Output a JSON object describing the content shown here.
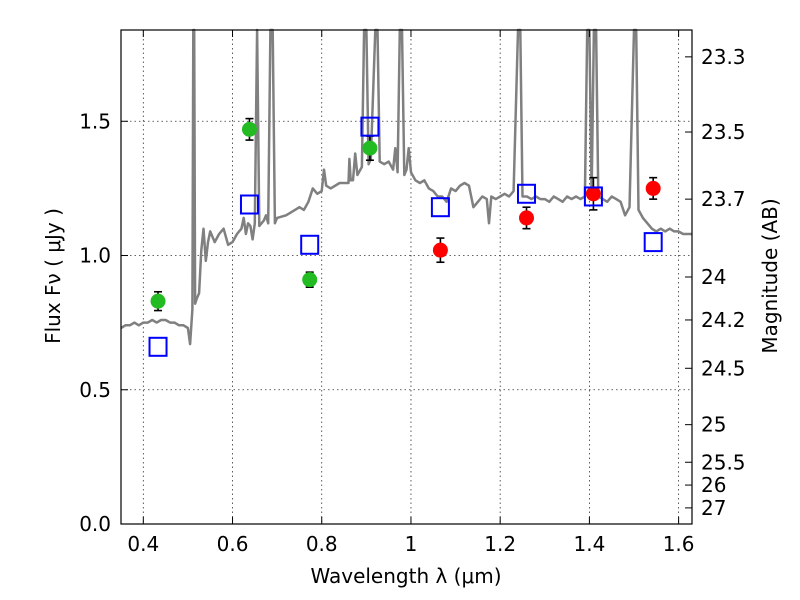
{
  "chart_data": {
    "type": "scatter",
    "xlabel": "Wavelength  λ (μm)",
    "ylabel": "Flux  Fν  ( μJy )",
    "ylabel_right": "Magnitude (AB)",
    "xlim": [
      0.35,
      1.63
    ],
    "ylim": [
      0.0,
      1.84
    ],
    "x_ticks": [
      0.4,
      0.6,
      0.8,
      1.0,
      1.2,
      1.4,
      1.6
    ],
    "x_tick_labels": [
      "0.4",
      "0.6",
      "0.8",
      "1",
      "1.2",
      "1.4",
      "1.6"
    ],
    "y_ticks": [
      0.0,
      0.5,
      1.0,
      1.5
    ],
    "y_tick_labels": [
      "0.0",
      "0.5",
      "1.0",
      "1.5"
    ],
    "right_ticks": [
      {
        "label": "23.3",
        "flux": 1.74
      },
      {
        "label": "23.5",
        "flux": 1.46
      },
      {
        "label": "23.7",
        "flux": 1.21
      },
      {
        "label": "24",
        "flux": 0.92
      },
      {
        "label": "24.2",
        "flux": 0.76
      },
      {
        "label": "24.5",
        "flux": 0.58
      },
      {
        "label": "25",
        "flux": 0.37
      },
      {
        "label": "25.5",
        "flux": 0.23
      },
      {
        "label": "26",
        "flux": 0.145
      },
      {
        "label": "27",
        "flux": 0.06
      }
    ],
    "grid": true,
    "series": [
      {
        "kind": "spectrum",
        "color": "#808080",
        "points": [
          [
            0.35,
            0.73
          ],
          [
            0.36,
            0.74
          ],
          [
            0.37,
            0.74
          ],
          [
            0.38,
            0.75
          ],
          [
            0.39,
            0.74
          ],
          [
            0.4,
            0.75
          ],
          [
            0.41,
            0.75
          ],
          [
            0.42,
            0.76
          ],
          [
            0.43,
            0.75
          ],
          [
            0.44,
            0.76
          ],
          [
            0.45,
            0.76
          ],
          [
            0.46,
            0.75
          ],
          [
            0.47,
            0.75
          ],
          [
            0.48,
            0.74
          ],
          [
            0.49,
            0.74
          ],
          [
            0.5,
            0.73
          ],
          [
            0.505,
            0.67
          ],
          [
            0.51,
            0.8
          ],
          [
            0.512,
            1.84
          ],
          [
            0.514,
            1.84
          ],
          [
            0.516,
            0.82
          ],
          [
            0.52,
            0.84
          ],
          [
            0.525,
            0.86
          ],
          [
            0.53,
            1.02
          ],
          [
            0.535,
            1.1
          ],
          [
            0.54,
            0.98
          ],
          [
            0.545,
            1.05
          ],
          [
            0.55,
            1.09
          ],
          [
            0.56,
            1.05
          ],
          [
            0.57,
            1.08
          ],
          [
            0.58,
            1.1
          ],
          [
            0.59,
            1.04
          ],
          [
            0.6,
            1.05
          ],
          [
            0.61,
            1.08
          ],
          [
            0.62,
            1.1
          ],
          [
            0.625,
            1.14
          ],
          [
            0.63,
            1.08
          ],
          [
            0.635,
            1.12
          ],
          [
            0.64,
            1.11
          ],
          [
            0.645,
            1.06
          ],
          [
            0.65,
            1.12
          ],
          [
            0.655,
            1.84
          ],
          [
            0.66,
            1.11
          ],
          [
            0.665,
            1.12
          ],
          [
            0.67,
            1.13
          ],
          [
            0.675,
            1.15
          ],
          [
            0.68,
            1.12
          ],
          [
            0.685,
            1.84
          ],
          [
            0.69,
            1.84
          ],
          [
            0.695,
            1.12
          ],
          [
            0.7,
            1.14
          ],
          [
            0.72,
            1.15
          ],
          [
            0.74,
            1.17
          ],
          [
            0.75,
            1.18
          ],
          [
            0.76,
            1.17
          ],
          [
            0.77,
            1.2
          ],
          [
            0.78,
            1.25
          ],
          [
            0.79,
            1.23
          ],
          [
            0.8,
            1.24
          ],
          [
            0.805,
            1.32
          ],
          [
            0.81,
            1.26
          ],
          [
            0.82,
            1.25
          ],
          [
            0.84,
            1.27
          ],
          [
            0.86,
            1.27
          ],
          [
            0.862,
            1.36
          ],
          [
            0.865,
            1.28
          ],
          [
            0.87,
            1.28
          ],
          [
            0.875,
            1.38
          ],
          [
            0.88,
            1.3
          ],
          [
            0.89,
            1.33
          ],
          [
            0.895,
            1.84
          ],
          [
            0.9,
            1.84
          ],
          [
            0.905,
            1.34
          ],
          [
            0.91,
            1.36
          ],
          [
            0.92,
            1.84
          ],
          [
            0.925,
            1.84
          ],
          [
            0.93,
            1.35
          ],
          [
            0.94,
            1.34
          ],
          [
            0.95,
            1.35
          ],
          [
            0.96,
            1.32
          ],
          [
            0.965,
            1.4
          ],
          [
            0.97,
            1.31
          ],
          [
            0.975,
            1.84
          ],
          [
            0.98,
            1.84
          ],
          [
            0.985,
            1.3
          ],
          [
            0.99,
            1.32
          ],
          [
            0.995,
            1.4
          ],
          [
            1.0,
            1.31
          ],
          [
            1.01,
            1.28
          ],
          [
            1.02,
            1.27
          ],
          [
            1.03,
            1.28
          ],
          [
            1.04,
            1.25
          ],
          [
            1.05,
            1.24
          ],
          [
            1.06,
            1.22
          ],
          [
            1.07,
            1.22
          ],
          [
            1.08,
            1.2
          ],
          [
            1.09,
            1.25
          ],
          [
            1.1,
            1.24
          ],
          [
            1.11,
            1.26
          ],
          [
            1.12,
            1.27
          ],
          [
            1.13,
            1.26
          ],
          [
            1.14,
            1.18
          ],
          [
            1.15,
            1.2
          ],
          [
            1.16,
            1.22
          ],
          [
            1.17,
            1.21
          ],
          [
            1.175,
            1.12
          ],
          [
            1.18,
            1.22
          ],
          [
            1.19,
            1.21
          ],
          [
            1.2,
            1.22
          ],
          [
            1.21,
            1.23
          ],
          [
            1.22,
            1.22
          ],
          [
            1.23,
            1.24
          ],
          [
            1.24,
            1.84
          ],
          [
            1.245,
            1.84
          ],
          [
            1.25,
            1.22
          ],
          [
            1.26,
            1.22
          ],
          [
            1.27,
            1.21
          ],
          [
            1.28,
            1.22
          ],
          [
            1.29,
            1.21
          ],
          [
            1.3,
            1.21
          ],
          [
            1.31,
            1.2
          ],
          [
            1.32,
            1.22
          ],
          [
            1.33,
            1.21
          ],
          [
            1.34,
            1.2
          ],
          [
            1.35,
            1.22
          ],
          [
            1.36,
            1.21
          ],
          [
            1.37,
            1.22
          ],
          [
            1.38,
            1.21
          ],
          [
            1.39,
            1.22
          ],
          [
            1.395,
            1.84
          ],
          [
            1.4,
            1.84
          ],
          [
            1.405,
            1.23
          ],
          [
            1.41,
            1.84
          ],
          [
            1.415,
            1.84
          ],
          [
            1.42,
            1.22
          ],
          [
            1.43,
            1.21
          ],
          [
            1.44,
            1.2
          ],
          [
            1.45,
            1.22
          ],
          [
            1.46,
            1.21
          ],
          [
            1.47,
            1.2
          ],
          [
            1.48,
            1.15
          ],
          [
            1.49,
            1.18
          ],
          [
            1.5,
            1.84
          ],
          [
            1.505,
            1.84
          ],
          [
            1.51,
            1.17
          ],
          [
            1.52,
            1.14
          ],
          [
            1.53,
            1.12
          ],
          [
            1.54,
            1.1
          ],
          [
            1.55,
            1.09
          ],
          [
            1.56,
            1.1
          ],
          [
            1.57,
            1.09
          ],
          [
            1.58,
            1.1
          ],
          [
            1.59,
            1.09
          ],
          [
            1.6,
            1.09
          ],
          [
            1.61,
            1.08
          ],
          [
            1.62,
            1.08
          ],
          [
            1.63,
            1.08
          ]
        ]
      },
      {
        "kind": "points",
        "marker": "circle",
        "color": "#22bb22",
        "points": [
          {
            "x": 0.433,
            "y": 0.83,
            "err": 0.035
          },
          {
            "x": 0.638,
            "y": 1.47,
            "err": 0.04
          },
          {
            "x": 0.773,
            "y": 0.91,
            "err": 0.028
          },
          {
            "x": 0.908,
            "y": 1.4,
            "err": 0.045
          }
        ]
      },
      {
        "kind": "points",
        "marker": "circle",
        "color": "#ff0000",
        "points": [
          {
            "x": 1.066,
            "y": 1.02,
            "err": 0.045
          },
          {
            "x": 1.259,
            "y": 1.14,
            "err": 0.04
          },
          {
            "x": 1.409,
            "y": 1.23,
            "err": 0.06
          },
          {
            "x": 1.543,
            "y": 1.25,
            "err": 0.04
          }
        ]
      },
      {
        "kind": "points",
        "marker": "open-square",
        "color": "#0000ff",
        "points": [
          {
            "x": 0.433,
            "y": 0.66
          },
          {
            "x": 0.638,
            "y": 1.19
          },
          {
            "x": 0.773,
            "y": 1.04
          },
          {
            "x": 0.908,
            "y": 1.48
          },
          {
            "x": 1.066,
            "y": 1.18
          },
          {
            "x": 1.259,
            "y": 1.23
          },
          {
            "x": 1.409,
            "y": 1.22
          },
          {
            "x": 1.543,
            "y": 1.05
          }
        ]
      }
    ]
  }
}
